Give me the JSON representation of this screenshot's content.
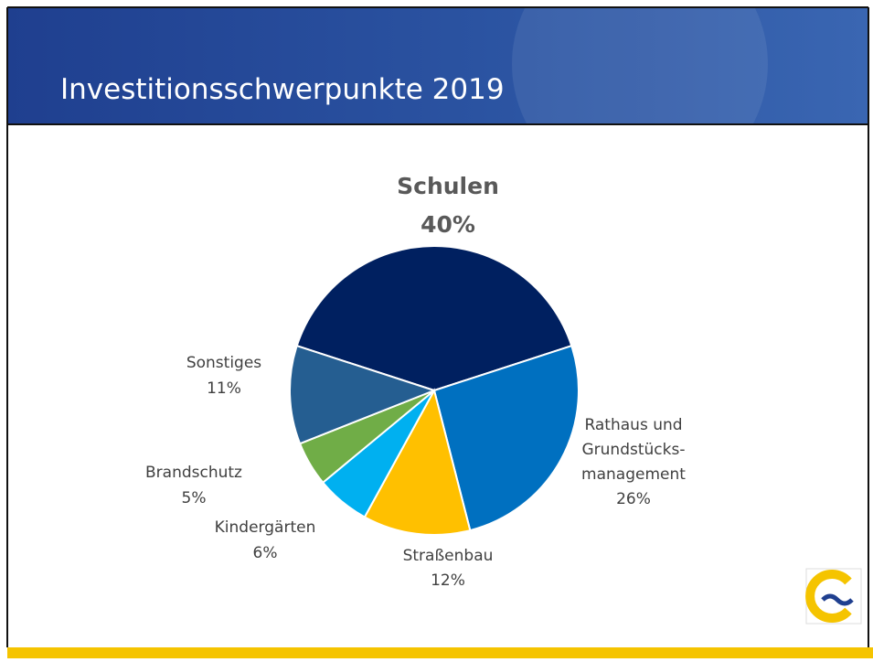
{
  "header": {
    "title": "Investitionsschwerpunkte 2019"
  },
  "chart_data": {
    "type": "pie",
    "categories": [
      "Schulen",
      "Rathaus und\nGrundstücks-\nmanagement",
      "Straßenbau",
      "Kindergärten",
      "Brandschutz",
      "Sonstiges"
    ],
    "values": [
      40,
      26,
      12,
      6,
      5,
      11
    ],
    "value_labels": [
      "40%",
      "26%",
      "12%",
      "6%",
      "5%",
      "11%"
    ],
    "colors": [
      "#002060",
      "#0070c0",
      "#ffc000",
      "#00b0f0",
      "#70ad47",
      "#255e91"
    ]
  }
}
